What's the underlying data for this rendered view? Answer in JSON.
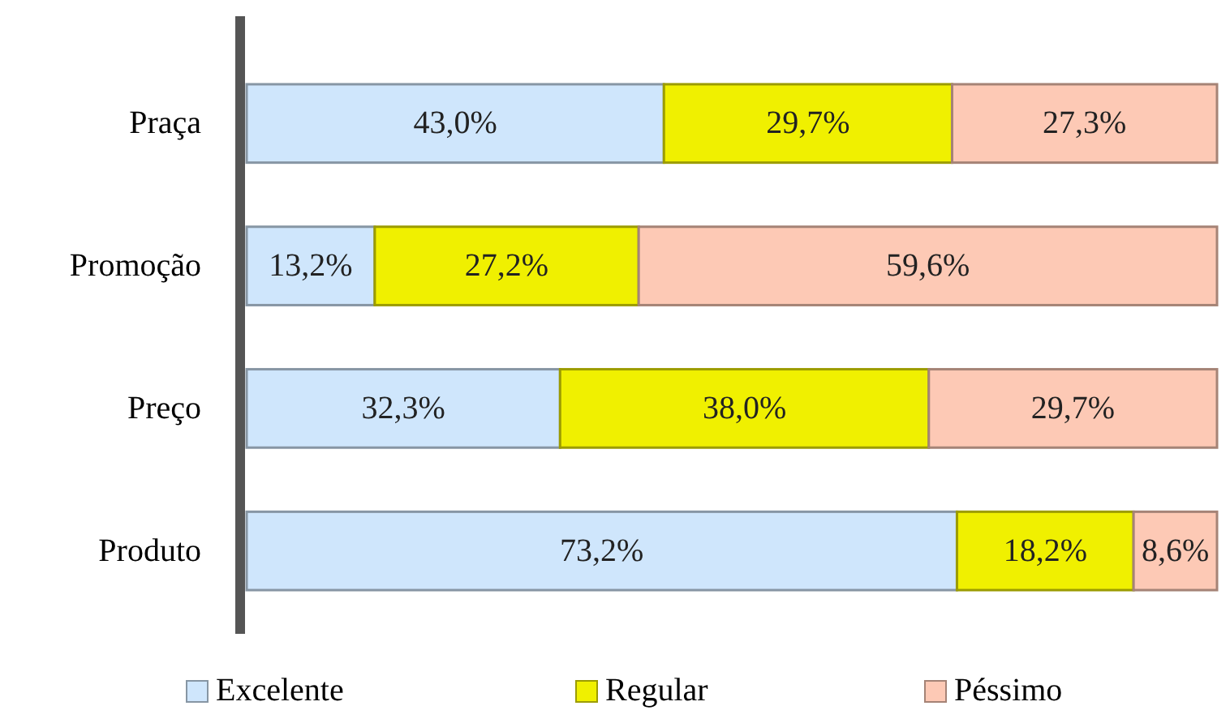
{
  "chart_data": {
    "type": "bar",
    "orientation": "horizontal",
    "stacked": true,
    "categories": [
      "Praça",
      "Promoção",
      "Preço",
      "Produto"
    ],
    "series": [
      {
        "name": "Excelente",
        "color": "#cfe6fc",
        "values": [
          43.0,
          13.2,
          32.3,
          73.2
        ],
        "value_labels": [
          "43,0%",
          "13,2%",
          "32,3%",
          "73,2%"
        ]
      },
      {
        "name": "Regular",
        "color": "#f0f000",
        "values": [
          29.7,
          27.2,
          38.0,
          18.2
        ],
        "value_labels": [
          "29,7%",
          "27,2%",
          "38,0%",
          "18,2%"
        ]
      },
      {
        "name": "Péssimo",
        "color": "#fdc9b5",
        "values": [
          27.3,
          59.6,
          29.7,
          8.6
        ],
        "value_labels": [
          "27,3%",
          "59,6%",
          "29,7%",
          "8,6%"
        ]
      }
    ],
    "xlim": [
      0,
      100
    ],
    "tick_labels": "y",
    "legend": "bottom",
    "grid": false
  }
}
